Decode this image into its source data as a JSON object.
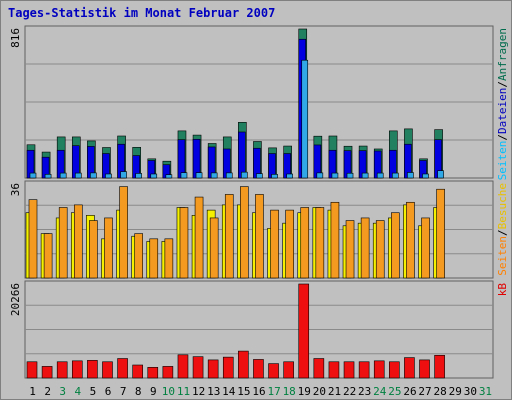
{
  "title": "Tages-Statistik im Monat Februar 2007",
  "chart_data": {
    "type": "bar",
    "categories": [
      "1",
      "2",
      "3",
      "4",
      "5",
      "6",
      "7",
      "8",
      "9",
      "10",
      "11",
      "12",
      "13",
      "14",
      "15",
      "16",
      "17",
      "18",
      "19",
      "20",
      "21",
      "22",
      "23",
      "24",
      "25",
      "26",
      "27",
      "28",
      "29",
      "30",
      "31"
    ],
    "weekend_days": [
      "3",
      "4",
      "10",
      "11",
      "17",
      "18",
      "24",
      "25",
      "31"
    ],
    "panels": [
      {
        "name": "requests",
        "ymax_label": "816",
        "ymax": 816,
        "legend_parts": [
          "Seiten",
          "/",
          "Dateien",
          "/",
          "Anfragen"
        ],
        "legend_colors": [
          "#00c0ff",
          "#000000",
          "#0000c0",
          "#000000",
          "#006c4c"
        ],
        "series": [
          {
            "name": "Anfragen",
            "color": "#208060",
            "values": [
              182,
              142,
              225,
              225,
              203,
              167,
              230,
              168,
              105,
              92,
              258,
              235,
              189,
              225,
              305,
              200,
              165,
              175,
              816,
              229,
              230,
              174,
              175,
              159,
              258,
              269,
              105,
              265,
              0,
              0,
              0
            ]
          },
          {
            "name": "Dateien",
            "color": "#0000e0",
            "values": [
              152,
              114,
              152,
              177,
              173,
              134,
              185,
              123,
              96,
              73,
              210,
              212,
              170,
              159,
              252,
              163,
              134,
              134,
              760,
              181,
              152,
              150,
              150,
              148,
              152,
              185,
              96,
              210,
              0,
              0,
              0
            ]
          },
          {
            "name": "Seiten",
            "color": "#30a8e8",
            "values": [
              27,
              20,
              27,
              27,
              28,
              22,
              35,
              25,
              22,
              18,
              29,
              29,
              28,
              28,
              32,
              24,
              20,
              22,
              645,
              28,
              27,
              26,
              27,
              27,
              27,
              30,
              22,
              40,
              0,
              0,
              0
            ]
          }
        ]
      },
      {
        "name": "visits",
        "ymax_label": "36",
        "ymax": 36,
        "legend_parts": [
          "Seiten",
          "/",
          "Besuche"
        ],
        "legend_colors": [
          "#ff8000",
          "#000000",
          "#e8c000"
        ],
        "series": [
          {
            "name": "Besuche",
            "color": "#f4f000",
            "values": [
              25,
              17,
              23,
              25,
              24,
              15,
              26,
              16,
              14,
              14,
              27,
              24,
              26,
              28,
              28,
              25,
              19,
              21,
              25,
              27,
              26,
              20,
              21,
              21,
              23,
              28,
              20,
              27,
              0,
              0,
              0
            ]
          },
          {
            "name": "Seiten",
            "color": "#f59a20",
            "values": [
              30,
              17,
              27,
              28,
              22,
              23,
              35,
              17,
              15,
              15,
              27,
              31,
              23,
              32,
              35,
              32,
              26,
              26,
              27,
              27,
              29,
              22,
              23,
              22,
              25,
              29,
              23,
              34,
              0,
              0,
              0
            ]
          }
        ]
      },
      {
        "name": "kbytes",
        "ymax_label": "20266",
        "ymax": 20266,
        "legend_parts": [
          "kB"
        ],
        "legend_colors": [
          "#e00000"
        ],
        "series": [
          {
            "name": "kB",
            "color": "#ee1010",
            "values": [
              3500,
              2500,
              3500,
              3700,
              3800,
              3500,
              4200,
              2800,
              2300,
              2500,
              5000,
              4600,
              3900,
              4500,
              5800,
              4000,
              3100,
              3500,
              20266,
              4200,
              3500,
              3500,
              3500,
              3700,
              3500,
              4400,
              3900,
              4900,
              0,
              0,
              0
            ]
          }
        ]
      }
    ]
  }
}
